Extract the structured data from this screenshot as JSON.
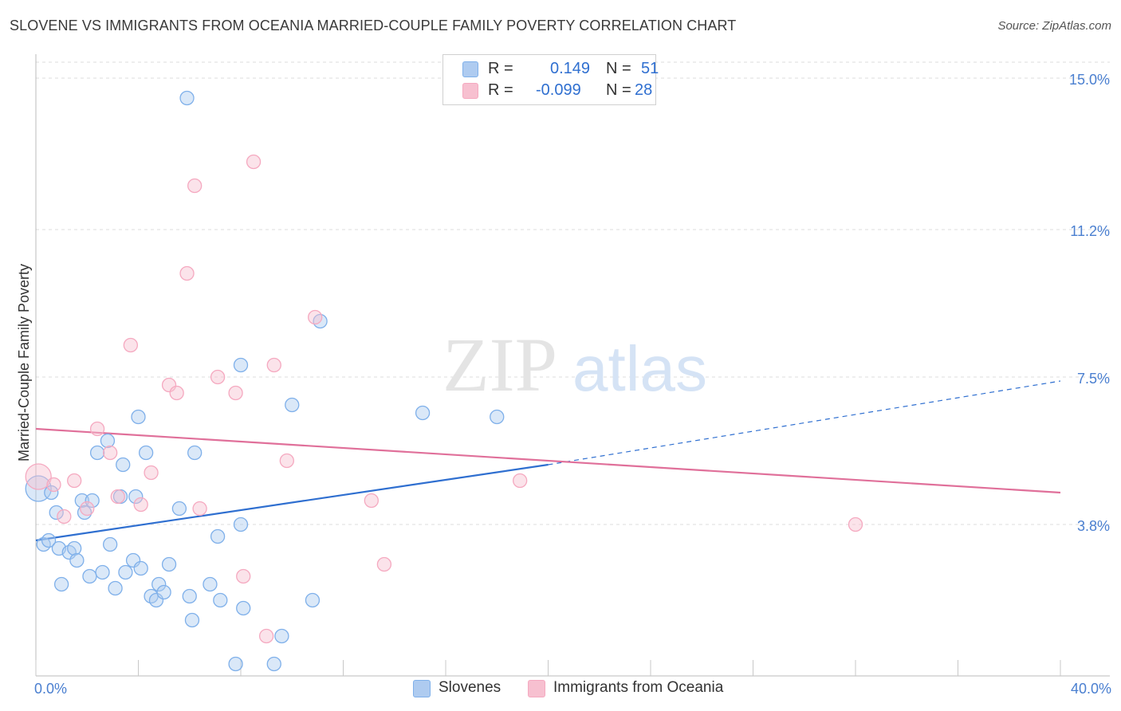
{
  "title": "SLOVENE VS IMMIGRANTS FROM OCEANIA MARRIED-COUPLE FAMILY POVERTY CORRELATION CHART",
  "source": "Source: ZipAtlas.com",
  "watermark": {
    "zip": "ZIP",
    "atlas": "atlas"
  },
  "legend": {
    "rows": [
      {
        "r_label": "R =",
        "r_value": "0.149",
        "n_label": "N =",
        "n_value": "51",
        "color": "#aecbf0"
      },
      {
        "r_label": "R =",
        "r_value": "-0.099",
        "n_label": "N =",
        "n_value": "28",
        "color": "#f7c0d0"
      }
    ]
  },
  "bottom_legend": {
    "slovenes": "Slovenes",
    "oceania": "Immigrants from Oceania"
  },
  "chart_data": {
    "type": "scatter",
    "title": "SLOVENE VS IMMIGRANTS FROM OCEANIA MARRIED-COUPLE FAMILY POVERTY CORRELATION CHART",
    "xlabel": "",
    "ylabel": "Married-Couple Family Poverty",
    "xlim": [
      0,
      40
    ],
    "ylim": [
      0,
      15.4
    ],
    "x_tick_labels": [
      "0.0%",
      "40.0%"
    ],
    "y_ticks": [
      3.8,
      7.5,
      11.2,
      15.0
    ],
    "y_tick_labels": [
      "3.8%",
      "7.5%",
      "11.2%",
      "15.0%"
    ],
    "grid": "horizontal dashed",
    "series": [
      {
        "name": "Slovenes",
        "color": "#7fb0ea",
        "points": [
          [
            0.1,
            4.7
          ],
          [
            0.3,
            3.3
          ],
          [
            0.5,
            3.4
          ],
          [
            0.6,
            4.6
          ],
          [
            0.8,
            4.1
          ],
          [
            1.0,
            2.3
          ],
          [
            0.9,
            3.2
          ],
          [
            1.3,
            3.1
          ],
          [
            1.5,
            3.2
          ],
          [
            1.6,
            2.9
          ],
          [
            1.8,
            4.4
          ],
          [
            1.9,
            4.1
          ],
          [
            2.1,
            2.5
          ],
          [
            2.2,
            4.4
          ],
          [
            2.4,
            5.6
          ],
          [
            2.6,
            2.6
          ],
          [
            2.8,
            5.9
          ],
          [
            2.9,
            3.3
          ],
          [
            3.1,
            2.2
          ],
          [
            3.3,
            4.5
          ],
          [
            3.4,
            5.3
          ],
          [
            3.5,
            2.6
          ],
          [
            3.8,
            2.9
          ],
          [
            3.9,
            4.5
          ],
          [
            4.0,
            6.5
          ],
          [
            4.1,
            2.7
          ],
          [
            4.3,
            5.6
          ],
          [
            4.5,
            2.0
          ],
          [
            4.7,
            1.9
          ],
          [
            4.8,
            2.3
          ],
          [
            5.0,
            2.1
          ],
          [
            5.2,
            2.8
          ],
          [
            5.6,
            4.2
          ],
          [
            5.9,
            14.5
          ],
          [
            6.0,
            2.0
          ],
          [
            6.1,
            1.4
          ],
          [
            6.2,
            5.6
          ],
          [
            6.8,
            2.3
          ],
          [
            7.1,
            3.5
          ],
          [
            7.2,
            1.9
          ],
          [
            7.8,
            0.3
          ],
          [
            8.1,
            1.7
          ],
          [
            8.0,
            3.8
          ],
          [
            8.0,
            7.8
          ],
          [
            9.3,
            0.3
          ],
          [
            9.6,
            1.0
          ],
          [
            10.0,
            6.8
          ],
          [
            10.8,
            1.9
          ],
          [
            11.1,
            8.9
          ],
          [
            15.1,
            6.6
          ],
          [
            18.0,
            6.5
          ]
        ]
      },
      {
        "name": "Immigrants from Oceania",
        "color": "#f5a9c0",
        "points": [
          [
            0.1,
            5.0
          ],
          [
            0.7,
            4.8
          ],
          [
            1.1,
            4.0
          ],
          [
            1.5,
            4.9
          ],
          [
            2.0,
            4.2
          ],
          [
            2.4,
            6.2
          ],
          [
            2.9,
            5.6
          ],
          [
            3.2,
            4.5
          ],
          [
            3.7,
            8.3
          ],
          [
            4.1,
            4.3
          ],
          [
            4.5,
            5.1
          ],
          [
            5.2,
            7.3
          ],
          [
            5.5,
            7.1
          ],
          [
            5.9,
            10.1
          ],
          [
            6.2,
            12.3
          ],
          [
            6.4,
            4.2
          ],
          [
            7.1,
            7.5
          ],
          [
            7.8,
            7.1
          ],
          [
            8.1,
            2.5
          ],
          [
            8.5,
            12.9
          ],
          [
            9.0,
            1.0
          ],
          [
            9.3,
            7.8
          ],
          [
            9.8,
            5.4
          ],
          [
            10.9,
            9.0
          ],
          [
            13.1,
            4.4
          ],
          [
            13.6,
            2.8
          ],
          [
            18.9,
            4.9
          ],
          [
            32.0,
            3.8
          ]
        ]
      }
    ],
    "trend_lines": [
      {
        "series": "Slovenes",
        "solid_from": [
          0,
          3.4
        ],
        "solid_to": [
          20,
          5.3
        ],
        "dashed_to": [
          40,
          7.4
        ],
        "color": "#2f6fd0"
      },
      {
        "series": "Immigrants from Oceania",
        "from": [
          0,
          6.2
        ],
        "to": [
          40,
          4.6
        ],
        "color": "#e0709a"
      }
    ]
  }
}
